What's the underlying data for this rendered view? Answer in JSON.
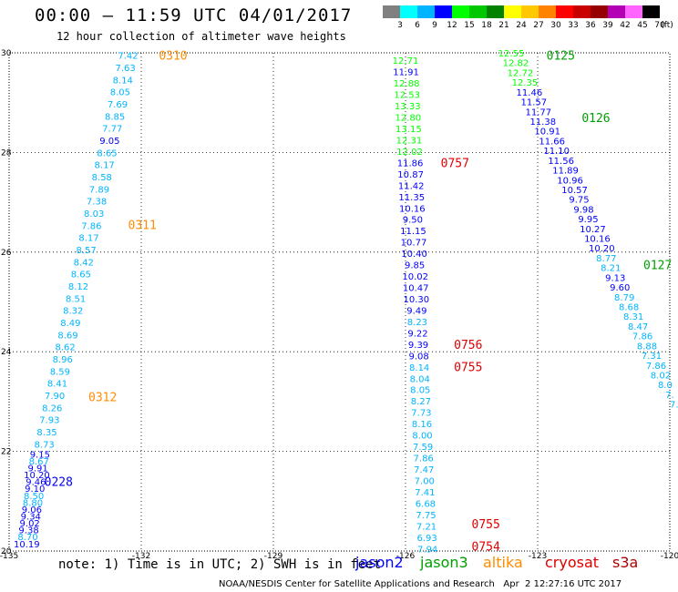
{
  "header": {
    "title": "00:00 – 11:59 UTC 04/01/2017",
    "subtitle": "12 hour collection of altimeter wave heights"
  },
  "colorbar": {
    "unit": "(ft)",
    "levels": [
      {
        "label": "3",
        "color": "#808080"
      },
      {
        "label": "6",
        "color": "#00ffff"
      },
      {
        "label": "9",
        "color": "#00b4ff"
      },
      {
        "label": "12",
        "color": "#0000ff"
      },
      {
        "label": "15",
        "color": "#00ff00"
      },
      {
        "label": "18",
        "color": "#00c800"
      },
      {
        "label": "21",
        "color": "#008200"
      },
      {
        "label": "24",
        "color": "#ffff00"
      },
      {
        "label": "27",
        "color": "#ffc800"
      },
      {
        "label": "30",
        "color": "#ff8200"
      },
      {
        "label": "33",
        "color": "#ff0000"
      },
      {
        "label": "36",
        "color": "#c80000"
      },
      {
        "label": "39",
        "color": "#960000"
      },
      {
        "label": "42",
        "color": "#b400b4"
      },
      {
        "label": "45",
        "color": "#ff64ff"
      },
      {
        "label": "70",
        "color": "#000000"
      }
    ]
  },
  "footer": {
    "note": "note: 1) Time is in UTC; 2) SWH is in feet",
    "credit": "NOAA/NESDIS Center for Satellite Applications and Research   Apr  2 12:27:16 UTC 2017"
  },
  "legend": [
    {
      "name": "jason2",
      "color": "#0000ff"
    },
    {
      "name": "jason3",
      "color": "#00a000"
    },
    {
      "name": "altika",
      "color": "#ff8c00"
    },
    {
      "name": "cryosat",
      "color": "#e00000"
    },
    {
      "name": "s3a",
      "color": "#b00000"
    }
  ],
  "chart_data": {
    "type": "scatter",
    "xlim": [
      -135,
      -120
    ],
    "ylim": [
      20,
      30
    ],
    "x_ticks": [
      "-135",
      "-132",
      "-129",
      "-126",
      "-123",
      "-120"
    ],
    "y_ticks": [
      "20",
      "22",
      "24",
      "26",
      "28",
      "30"
    ],
    "grid": true,
    "color_scale_ft": [
      3,
      6,
      9,
      12,
      15,
      18,
      21,
      24,
      27,
      30,
      33,
      36,
      39,
      42,
      45,
      70
    ],
    "time_labels": [
      {
        "text": "0310",
        "x": -131.6,
        "y": 29.95,
        "satellite": "altika"
      },
      {
        "text": "0311",
        "x": -132.3,
        "y": 26.55,
        "satellite": "altika"
      },
      {
        "text": "0312",
        "x": -133.2,
        "y": 23.1,
        "satellite": "altika"
      },
      {
        "text": "0228",
        "x": -134.2,
        "y": 21.4,
        "satellite": "jason2"
      },
      {
        "text": "0757",
        "x": -125.2,
        "y": 27.8,
        "satellite": "cryosat"
      },
      {
        "text": "0756",
        "x": -124.9,
        "y": 24.15,
        "satellite": "cryosat"
      },
      {
        "text": "0755",
        "x": -124.9,
        "y": 23.7,
        "satellite": "cryosat"
      },
      {
        "text": "0755",
        "x": -124.5,
        "y": 20.55,
        "satellite": "cryosat"
      },
      {
        "text": "0754",
        "x": -124.5,
        "y": 20.1,
        "satellite": "cryosat"
      },
      {
        "text": "0125",
        "x": -122.8,
        "y": 29.95,
        "satellite": "jason3"
      },
      {
        "text": "0126",
        "x": -122.0,
        "y": 28.7,
        "satellite": "jason3"
      },
      {
        "text": "0127",
        "x": -120.6,
        "y": 25.75,
        "satellite": "jason3"
      }
    ],
    "tracks": [
      {
        "name": "altika",
        "x_start": -132.3,
        "y_start": 29.95,
        "x_end": -134.2,
        "y_end": 22.15,
        "values": [
          "7.42",
          "7.63",
          "8.14",
          "8.05",
          "7.69",
          "8.85",
          "7.77",
          "9.05",
          "8.65",
          "8.17",
          "8.58",
          "7.89",
          "7.38",
          "8.03",
          "7.86",
          "8.17",
          "8.57",
          "8.42",
          "8.65",
          "8.12",
          "8.51",
          "8.32",
          "8.49",
          "8.69",
          "8.62",
          "8.96",
          "8.59",
          "8.41",
          "7.90",
          "8.26",
          "7.93",
          "8.35",
          "8.73"
        ]
      },
      {
        "name": "jason2",
        "x_start": -134.3,
        "y_start": 21.95,
        "x_end": -134.6,
        "y_end": 20.15,
        "values": [
          "9.15",
          "8.67",
          "9.91",
          "10.20",
          "9.46",
          "9.10",
          "8.50",
          "8.80",
          "9.06",
          "9.34",
          "9.02",
          "9.38",
          "8.70",
          "10.19"
        ]
      },
      {
        "name": "cryosat",
        "x_start": -126.0,
        "y_start": 29.85,
        "x_end": -125.5,
        "y_end": 20.05,
        "values": [
          "12.71",
          "11.91",
          "12.88",
          "12.53",
          "13.33",
          "12.80",
          "13.15",
          "12.31",
          "12.02",
          "11.86",
          "10.87",
          "11.42",
          "11.35",
          "10.16",
          "9.50",
          "11.15",
          "10.77",
          "10.40",
          "9.85",
          "10.02",
          "10.47",
          "10.30",
          "9.49",
          "8.23",
          "9.22",
          "9.39",
          "9.08",
          "8.14",
          "8.04",
          "8.05",
          "8.27",
          "7.73",
          "8.16",
          "8.00",
          "7.59",
          "7.86",
          "7.47",
          "7.00",
          "7.41",
          "6.68",
          "7.75",
          "7.21",
          "6.93",
          "7.94"
        ]
      },
      {
        "name": "jason3",
        "x_start": -123.6,
        "y_start": 30.0,
        "x_end": -119.9,
        "y_end": 22.95,
        "values": [
          "12.55",
          "12.82",
          "12.72",
          "12.35",
          "11.46",
          "11.57",
          "11.77",
          "11.38",
          "10.91",
          "11.66",
          "11.10",
          "11.56",
          "11.89",
          "10.96",
          "10.57",
          "9.75",
          "9.98",
          "9.95",
          "10.27",
          "10.16",
          "10.20",
          "8.77",
          "8.21",
          "9.13",
          "9.60",
          "8.79",
          "8.68",
          "8.31",
          "8.47",
          "7.86",
          "8.88",
          "7.31",
          "7.86",
          "8.02",
          "8.0",
          "7.",
          "7."
        ]
      }
    ]
  }
}
